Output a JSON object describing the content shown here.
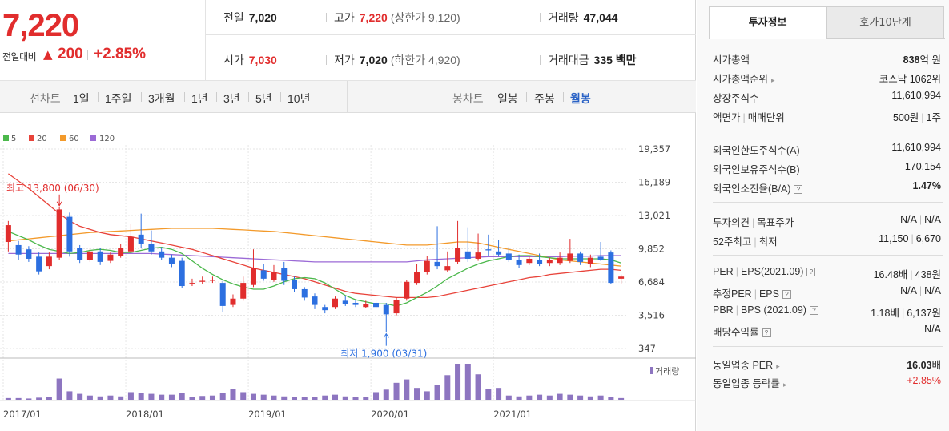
{
  "summary": {
    "price": "7,220",
    "prev_label": "전일대비",
    "up_symbol": "▲",
    "change": "200",
    "rate": "+2.85%"
  },
  "stats": {
    "prev_close": {
      "label": "전일",
      "value": "7,020"
    },
    "high": {
      "label": "고가",
      "value": "7,220",
      "sub": "(상한가 9,120)"
    },
    "volume": {
      "label": "거래량",
      "value": "47,044"
    },
    "open": {
      "label": "시가",
      "value": "7,030"
    },
    "low": {
      "label": "저가",
      "value": "7,020",
      "sub": "(하한가 4,920)"
    },
    "amount": {
      "label": "거래대금",
      "value": "335 백만"
    }
  },
  "period_bar": {
    "chart_label": "선차트",
    "periods": [
      "1일",
      "1주일",
      "3개월",
      "1년",
      "3년",
      "5년",
      "10년"
    ],
    "candle_label": "봉차트",
    "candle_types": [
      "일봉",
      "주봉",
      "월봉"
    ],
    "active_candle": "월봉"
  },
  "chart_data": {
    "type": "candlestick",
    "legend": [
      {
        "name": "5",
        "color": "#4bb84b"
      },
      {
        "name": "20",
        "color": "#e8433a"
      },
      {
        "name": "60",
        "color": "#f39a2b"
      },
      {
        "name": "120",
        "color": "#9b6ad6"
      }
    ],
    "y_ticks": [
      "19,357",
      "16,189",
      "13,021",
      "9,852",
      "6,684",
      "3,516",
      "347"
    ],
    "x_ticks": [
      "2017/01",
      "2018/01",
      "2019/01",
      "2020/01",
      "2021/01"
    ],
    "max_annotation": "최고 13,800 (06/30)",
    "min_annotation": "최저 1,900 (03/31)",
    "volume_label": "거래량",
    "up_color": "#e12d2d",
    "down_color": "#2c6fe0",
    "ylim": [
      347,
      19357
    ],
    "candles": [
      {
        "o": 10500,
        "c": 12100,
        "h": 12500,
        "l": 9600
      },
      {
        "o": 10200,
        "c": 9300,
        "h": 10600,
        "l": 8800
      },
      {
        "o": 9800,
        "c": 8900,
        "h": 10100,
        "l": 8600
      },
      {
        "o": 9100,
        "c": 7700,
        "h": 9500,
        "l": 7400
      },
      {
        "o": 8200,
        "c": 9100,
        "h": 9500,
        "l": 7900
      },
      {
        "o": 9000,
        "c": 13600,
        "h": 13800,
        "l": 8800
      },
      {
        "o": 12900,
        "c": 9600,
        "h": 13300,
        "l": 9100
      },
      {
        "o": 9900,
        "c": 8800,
        "h": 10200,
        "l": 8500
      },
      {
        "o": 8800,
        "c": 9600,
        "h": 9900,
        "l": 8600
      },
      {
        "o": 9600,
        "c": 8600,
        "h": 9900,
        "l": 8300
      },
      {
        "o": 8700,
        "c": 9300,
        "h": 9500,
        "l": 8500
      },
      {
        "o": 9200,
        "c": 9900,
        "h": 10300,
        "l": 9000
      },
      {
        "o": 9600,
        "c": 11000,
        "h": 12200,
        "l": 9400
      },
      {
        "o": 11200,
        "c": 10300,
        "h": 13200,
        "l": 9900
      },
      {
        "o": 10300,
        "c": 9600,
        "h": 11600,
        "l": 9300
      },
      {
        "o": 9600,
        "c": 9000,
        "h": 10000,
        "l": 8800
      },
      {
        "o": 9000,
        "c": 8400,
        "h": 9300,
        "l": 8100
      },
      {
        "o": 8700,
        "c": 6300,
        "h": 9000,
        "l": 6100
      },
      {
        "o": 6500,
        "c": 6600,
        "h": 7000,
        "l": 6300
      },
      {
        "o": 6700,
        "c": 6800,
        "h": 7200,
        "l": 6500
      },
      {
        "o": 6800,
        "c": 6900,
        "h": 7200,
        "l": 6600
      },
      {
        "o": 6600,
        "c": 4400,
        "h": 6800,
        "l": 3800
      },
      {
        "o": 4500,
        "c": 5100,
        "h": 5500,
        "l": 4300
      },
      {
        "o": 5100,
        "c": 6600,
        "h": 7200,
        "l": 4900
      },
      {
        "o": 6400,
        "c": 8000,
        "h": 9800,
        "l": 6200
      },
      {
        "o": 7800,
        "c": 7000,
        "h": 8400,
        "l": 6800
      },
      {
        "o": 6900,
        "c": 7600,
        "h": 8300,
        "l": 6700
      },
      {
        "o": 8000,
        "c": 6800,
        "h": 8600,
        "l": 6400
      },
      {
        "o": 6900,
        "c": 6000,
        "h": 7200,
        "l": 5700
      },
      {
        "o": 6000,
        "c": 5200,
        "h": 6200,
        "l": 4900
      },
      {
        "o": 5300,
        "c": 4500,
        "h": 5600,
        "l": 4100
      },
      {
        "o": 4300,
        "c": 4000,
        "h": 4500,
        "l": 3700
      },
      {
        "o": 4300,
        "c": 5100,
        "h": 5300,
        "l": 4100
      },
      {
        "o": 4900,
        "c": 4600,
        "h": 5400,
        "l": 4400
      },
      {
        "o": 4700,
        "c": 4500,
        "h": 5000,
        "l": 4300
      },
      {
        "o": 4300,
        "c": 4600,
        "h": 4900,
        "l": 4200
      },
      {
        "o": 4700,
        "c": 4300,
        "h": 5000,
        "l": 4100
      },
      {
        "o": 4500,
        "c": 3600,
        "h": 4700,
        "l": 1900
      },
      {
        "o": 3700,
        "c": 5000,
        "h": 5200,
        "l": 3500
      },
      {
        "o": 5100,
        "c": 6700,
        "h": 6900,
        "l": 4900
      },
      {
        "o": 6600,
        "c": 7600,
        "h": 8400,
        "l": 6400
      },
      {
        "o": 7600,
        "c": 8700,
        "h": 9200,
        "l": 7400
      },
      {
        "o": 8600,
        "c": 8200,
        "h": 12000,
        "l": 7900
      },
      {
        "o": 7800,
        "c": 8200,
        "h": 9600,
        "l": 7600
      },
      {
        "o": 8600,
        "c": 9900,
        "h": 12500,
        "l": 8400
      },
      {
        "o": 9600,
        "c": 8900,
        "h": 11900,
        "l": 8600
      },
      {
        "o": 8900,
        "c": 9500,
        "h": 11300,
        "l": 8700
      },
      {
        "o": 9800,
        "c": 9700,
        "h": 11200,
        "l": 9200
      },
      {
        "o": 9600,
        "c": 9300,
        "h": 10700,
        "l": 9100
      },
      {
        "o": 9400,
        "c": 8800,
        "h": 10000,
        "l": 8600
      },
      {
        "o": 8800,
        "c": 8300,
        "h": 9300,
        "l": 8000
      },
      {
        "o": 8500,
        "c": 8900,
        "h": 9100,
        "l": 8300
      },
      {
        "o": 8800,
        "c": 8400,
        "h": 9400,
        "l": 8200
      },
      {
        "o": 8500,
        "c": 8800,
        "h": 9000,
        "l": 8200
      },
      {
        "o": 8500,
        "c": 9000,
        "h": 9500,
        "l": 8300
      },
      {
        "o": 8700,
        "c": 9400,
        "h": 10800,
        "l": 8500
      },
      {
        "o": 9400,
        "c": 8600,
        "h": 9600,
        "l": 8300
      },
      {
        "o": 8400,
        "c": 9000,
        "h": 9300,
        "l": 8100
      },
      {
        "o": 9100,
        "c": 8800,
        "h": 10500,
        "l": 8700
      },
      {
        "o": 9500,
        "c": 6600,
        "h": 9700,
        "l": 6500
      },
      {
        "o": 7000,
        "c": 7200,
        "h": 7400,
        "l": 6500
      }
    ],
    "ma5": [
      11500,
      11100,
      10700,
      10200,
      9800,
      9600,
      9400,
      9500,
      9700,
      9800,
      9700,
      9500,
      9500,
      9700,
      9900,
      10000,
      9800,
      9400,
      8700,
      8000,
      7400,
      6900,
      6500,
      6200,
      6000,
      6000,
      6300,
      6700,
      7000,
      7100,
      7000,
      6600,
      6000,
      5400,
      5000,
      4800,
      4600,
      4600,
      4400,
      4700,
      5200,
      5700,
      6300,
      7000,
      7500,
      8000,
      8400,
      8700,
      8900,
      9100,
      9200,
      9200,
      9100,
      9000,
      8900,
      8900,
      8900,
      8900,
      8900,
      8800,
      8500
    ],
    "ma20": [
      17000,
      16300,
      15600,
      14800,
      14000,
      13200,
      12500,
      12000,
      11700,
      11400,
      11200,
      11100,
      11000,
      10800,
      10600,
      10400,
      10200,
      10000,
      9800,
      9500,
      9200,
      8900,
      8600,
      8300,
      8000,
      7800,
      7600,
      7400,
      7200,
      7000,
      6700,
      6400,
      6100,
      5800,
      5600,
      5500,
      5400,
      5300,
      5200,
      5200,
      5200,
      5200,
      5300,
      5500,
      5700,
      5900,
      6100,
      6300,
      6500,
      6700,
      6900,
      7100,
      7200,
      7400,
      7500,
      7600,
      7700,
      7800,
      7900,
      7900,
      7800
    ],
    "ma60": [
      10600,
      10700,
      10800,
      10900,
      11000,
      11100,
      11200,
      11300,
      11400,
      11450,
      11500,
      11550,
      11600,
      11650,
      11700,
      11750,
      11800,
      11800,
      11800,
      11800,
      11800,
      11750,
      11700,
      11650,
      11600,
      11550,
      11500,
      11400,
      11300,
      11200,
      11100,
      11000,
      10900,
      10800,
      10700,
      10600,
      10500,
      10400,
      10300,
      10200,
      10200,
      10200,
      10300,
      10400,
      10500,
      10500,
      10400,
      10200,
      10000,
      9800,
      9600,
      9400,
      9200,
      9000,
      8800,
      8700,
      8600,
      8500,
      8400,
      8300,
      8200
    ],
    "ma120": [
      9400,
      9400,
      9400,
      9400,
      9400,
      9400,
      9400,
      9400,
      9400,
      9400,
      9400,
      9400,
      9400,
      9400,
      9400,
      9350,
      9300,
      9250,
      9200,
      9150,
      9100,
      9050,
      9000,
      8950,
      8900,
      8850,
      8800,
      8750,
      8700,
      8650,
      8600,
      8600,
      8600,
      8600,
      8600,
      8600,
      8600,
      8600,
      8600,
      8600,
      8700,
      8800,
      8850,
      8900,
      8950,
      9000,
      9050,
      9100,
      9100,
      9100,
      9100,
      9100,
      9100,
      9100,
      9100,
      9150,
      9150,
      9150,
      9200,
      9200,
      9200
    ],
    "volume": [
      4,
      4,
      3,
      5,
      6,
      50,
      20,
      14,
      10,
      8,
      10,
      8,
      18,
      16,
      14,
      12,
      12,
      16,
      7,
      9,
      10,
      16,
      26,
      18,
      14,
      12,
      10,
      8,
      7,
      6,
      6,
      10,
      12,
      8,
      6,
      6,
      18,
      24,
      40,
      48,
      28,
      20,
      35,
      58,
      85,
      85,
      60,
      25,
      28,
      10,
      8,
      10,
      12,
      10,
      14,
      12,
      10,
      8,
      10,
      6,
      4
    ]
  },
  "side": {
    "tabs": [
      "투자정보",
      "호가10단계"
    ],
    "sections": [
      [
        {
          "k": "시가총액",
          "v_b": "838",
          "v": "억 원"
        },
        {
          "k": "시가총액순위",
          "arrow": "▸",
          "v": "코스닥 1062위"
        },
        {
          "k": "상장주식수",
          "v": "11,610,994"
        },
        {
          "k1": "액면가",
          "k2": "매매단위",
          "v1": "500원",
          "v2": "1주"
        }
      ],
      [
        {
          "k": "외국인한도주식수(A)",
          "v": "11,610,994"
        },
        {
          "k": "외국인보유주식수(B)",
          "v": "170,154"
        },
        {
          "k": "외국인소진율(B/A)",
          "q": "?",
          "v_b": "1.47%"
        }
      ],
      [
        {
          "k1": "투자의견",
          "k2": "목표주가",
          "v1": "N/A",
          "v2": "N/A"
        },
        {
          "k1": "52주최고",
          "k2": "최저",
          "v1": "11,150",
          "v2": "6,670"
        }
      ],
      [
        {
          "k1": "PER",
          "k2": "EPS(2021.09)",
          "q": "?",
          "v1": "16.48배",
          "v2": "438원"
        },
        {
          "k1": "추정PER",
          "k2": "EPS",
          "q": "?",
          "v1": "N/A",
          "v2": "N/A"
        },
        {
          "k1": "PBR",
          "k2": "BPS (2021.09)",
          "q": "?",
          "v1": "1.18배",
          "v2": "6,137원"
        },
        {
          "k": "배당수익률",
          "q": "?",
          "v": "N/A"
        }
      ],
      [
        {
          "k": "동일업종 PER",
          "arrow": "▸",
          "v_b": "16.03",
          "v": "배"
        },
        {
          "k": "동일업종 등락률",
          "arrow": "▸",
          "v_red": "+2.85%"
        }
      ]
    ]
  }
}
